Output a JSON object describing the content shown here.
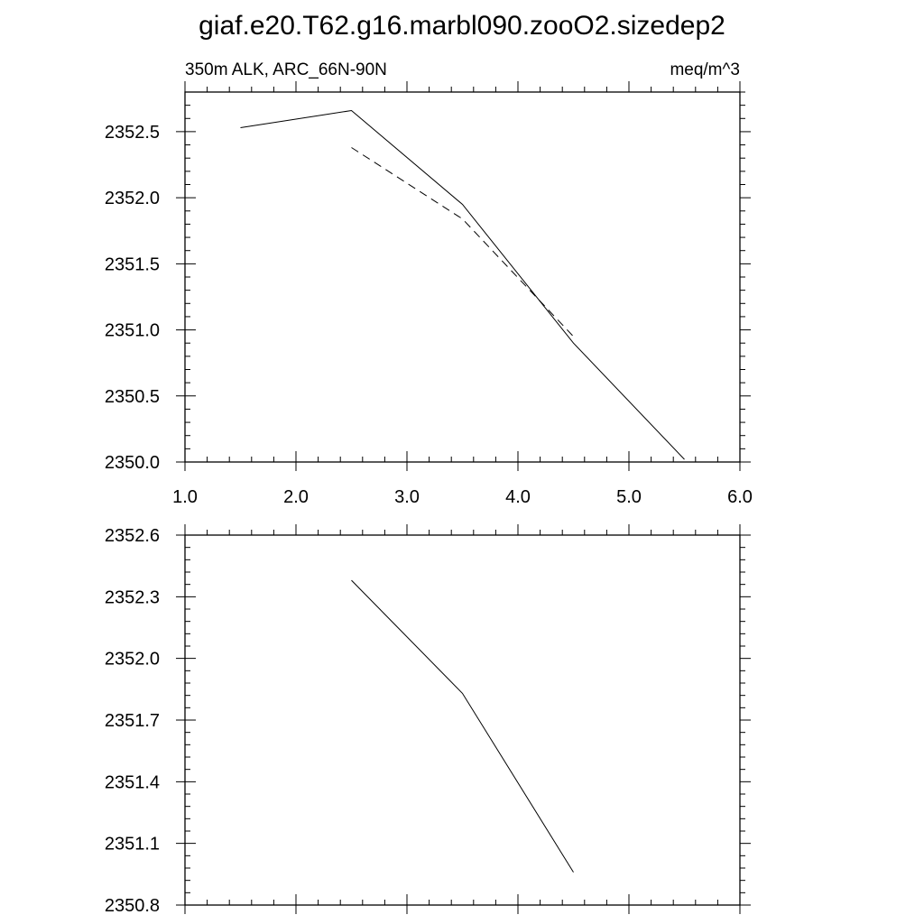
{
  "title": "giaf.e20.T62.g16.marbl090.zooO2.sizedep2",
  "panels": [
    {
      "left_label": "350m ALK, ARC_66N-90N",
      "right_label": "meq/m^3"
    },
    {
      "left_label": "",
      "right_label": ""
    }
  ],
  "chart_data": [
    {
      "type": "line",
      "title": "giaf.e20.T62.g16.marbl090.zooO2.sizedep2",
      "subtitle_left": "350m ALK, ARC_66N-90N",
      "subtitle_right": "meq/m^3",
      "xlabel": "",
      "ylabel": "",
      "xlim": [
        1.0,
        6.0
      ],
      "ylim": [
        2350.0,
        2352.8
      ],
      "x_ticks": [
        1.0,
        2.0,
        3.0,
        4.0,
        5.0,
        6.0
      ],
      "x_tick_labels": [
        "1.0",
        "2.0",
        "3.0",
        "4.0",
        "5.0",
        "6.0"
      ],
      "y_ticks": [
        2350.0,
        2350.5,
        2351.0,
        2351.5,
        2352.0,
        2352.5
      ],
      "y_tick_labels": [
        "2350.0",
        "2350.5",
        "2351.0",
        "2351.5",
        "2352.0",
        "2352.5"
      ],
      "grid": false,
      "series": [
        {
          "style": "solid",
          "color": "#000000",
          "x": [
            1.5,
            2.5,
            3.5,
            4.5,
            5.5
          ],
          "y": [
            2352.53,
            2352.66,
            2351.95,
            2350.9,
            2350.02
          ]
        },
        {
          "style": "dashed",
          "color": "#000000",
          "x": [
            2.5,
            3.5,
            4.5
          ],
          "y": [
            2352.38,
            2351.84,
            2350.95
          ]
        }
      ]
    },
    {
      "type": "line",
      "xlabel": "",
      "ylabel": "",
      "xlim": [
        1.0,
        6.0
      ],
      "ylim": [
        2350.8,
        2352.6
      ],
      "x_ticks": [
        1.0,
        2.0,
        3.0,
        4.0,
        5.0,
        6.0
      ],
      "x_tick_labels": [],
      "y_ticks": [
        2350.8,
        2351.1,
        2351.4,
        2351.7,
        2352.0,
        2352.3,
        2352.6
      ],
      "y_tick_labels": [
        "2350.8",
        "2351.1",
        "2351.4",
        "2351.7",
        "2352.0",
        "2352.3",
        "2352.6"
      ],
      "grid": false,
      "series": [
        {
          "style": "solid",
          "color": "#000000",
          "x": [
            2.5,
            3.5,
            4.5
          ],
          "y": [
            2352.38,
            2351.83,
            2350.96
          ]
        }
      ]
    }
  ]
}
